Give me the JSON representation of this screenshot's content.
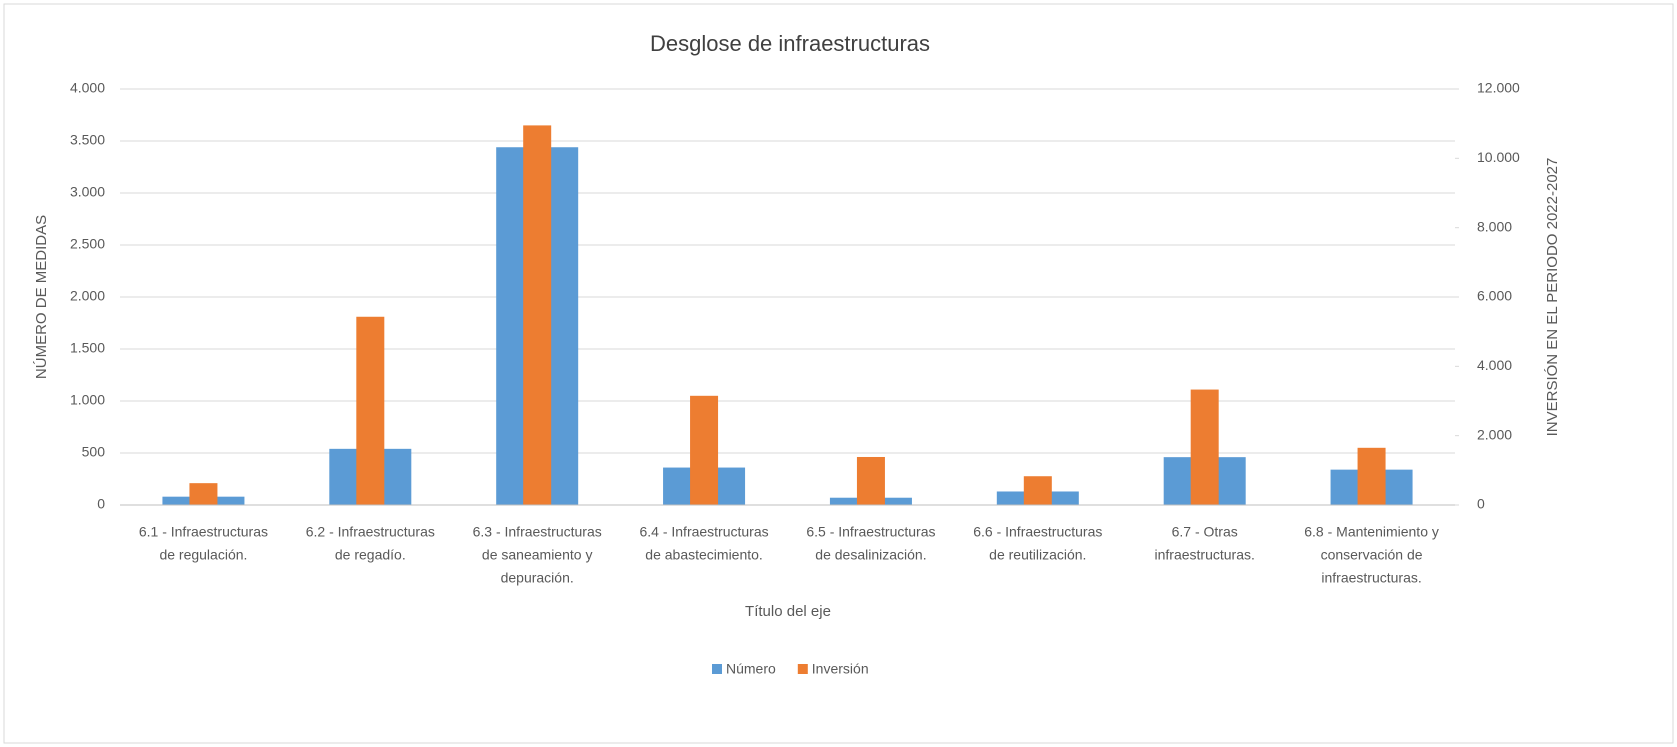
{
  "chart_data": {
    "type": "bar",
    "title": "Desglose de infraestructuras",
    "xlabel": "Título del eje",
    "ylabel": "NÚMERO DE MEDIDAS",
    "y2label": "INVERSIÓN EN EL PERIODO 2022-2027",
    "categories": [
      [
        "6.1 - Infraestructuras",
        "de regulación."
      ],
      [
        "6.2 - Infraestructuras",
        "de regadío."
      ],
      [
        "6.3 - Infraestructuras",
        "de saneamiento y",
        "depuración."
      ],
      [
        "6.4 - Infraestructuras",
        "de abastecimiento."
      ],
      [
        "6.5 - Infraestructuras",
        "de desalinización."
      ],
      [
        "6.6 - Infraestructuras",
        "de reutilización."
      ],
      [
        "6.7 - Otras",
        "infraestructuras."
      ],
      [
        "6.8 - Mantenimiento y",
        "conservación de",
        "infraestructuras."
      ]
    ],
    "series": [
      {
        "name": "Número",
        "color": "#5b9bd5",
        "values": [
          80,
          540,
          3440,
          360,
          70,
          130,
          460,
          340
        ]
      },
      {
        "name": "Inversión",
        "color": "#ed7d31",
        "axis": "y2",
        "values": [
          630,
          5430,
          10950,
          3150,
          1385,
          830,
          3330,
          1650
        ]
      }
    ],
    "ylim": [
      0,
      4000
    ],
    "yticks": [
      0,
      500,
      {
        "value": 1000,
        "label": "1.000"
      },
      {
        "value": 1500,
        "label": "1.500"
      },
      {
        "value": 2000,
        "label": "2.000"
      },
      {
        "value": 2500,
        "label": "2.500"
      },
      {
        "value": 3000,
        "label": "3.000"
      },
      {
        "value": 3500,
        "label": "3.500"
      },
      {
        "value": 4000,
        "label": "4.000"
      }
    ],
    "y2lim": [
      0,
      12000
    ],
    "y2ticks": [
      0,
      {
        "value": 2000,
        "label": "2.000"
      },
      {
        "value": 4000,
        "label": "4.000"
      },
      {
        "value": 6000,
        "label": "6.000"
      },
      {
        "value": 8000,
        "label": "8.000"
      },
      {
        "value": 10000,
        "label": "10.000"
      },
      {
        "value": 12000,
        "label": "12.000"
      }
    ],
    "grid": true,
    "legend": "bottom"
  }
}
